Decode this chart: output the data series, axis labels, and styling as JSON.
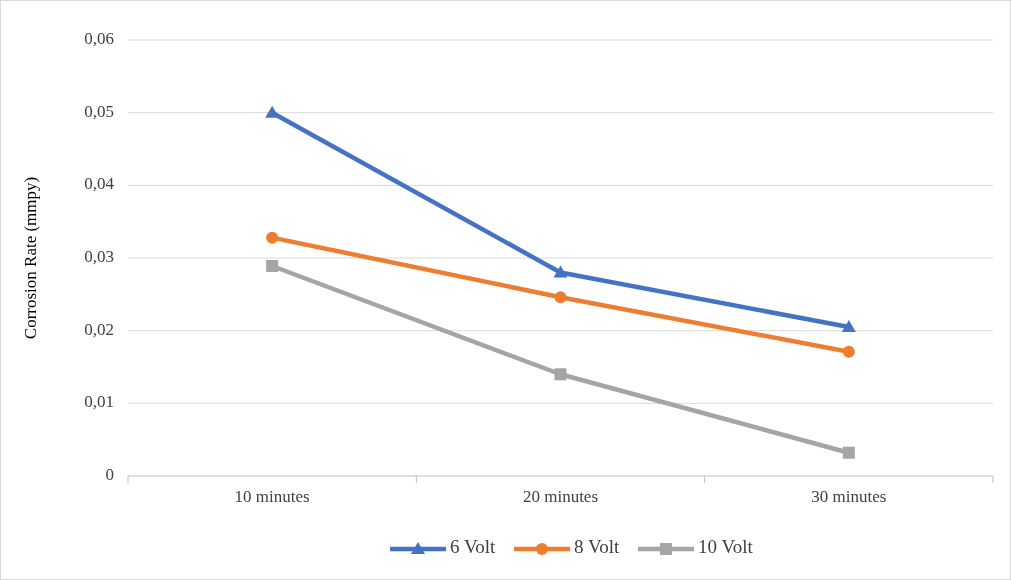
{
  "chart_data": {
    "type": "line",
    "ylabel": "Corrosion Rate (mmpy)",
    "categories": [
      "10 minutes",
      "20 minutes",
      "30 minutes"
    ],
    "series": [
      {
        "name": "6 Volt",
        "color": "#4472c4",
        "marker": "triangle",
        "values": [
          0.05,
          0.028,
          0.0205
        ]
      },
      {
        "name": "8 Volt",
        "color": "#ed7d31",
        "marker": "circle",
        "values": [
          0.0328,
          0.0246,
          0.0171
        ]
      },
      {
        "name": "10 Volt",
        "color": "#a5a5a5",
        "marker": "square",
        "values": [
          0.0289,
          0.014,
          0.0032
        ]
      }
    ],
    "ylim": [
      0,
      0.06
    ],
    "yticks": [
      {
        "value": 0,
        "label": "0"
      },
      {
        "value": 0.01,
        "label": "0,01"
      },
      {
        "value": 0.02,
        "label": "0,02"
      },
      {
        "value": 0.03,
        "label": "0,03"
      },
      {
        "value": 0.04,
        "label": "0,04"
      },
      {
        "value": 0.05,
        "label": "0,05"
      },
      {
        "value": 0.06,
        "label": "0,06"
      }
    ],
    "grid": "y",
    "legend": "bottom",
    "line_style": "solid"
  }
}
